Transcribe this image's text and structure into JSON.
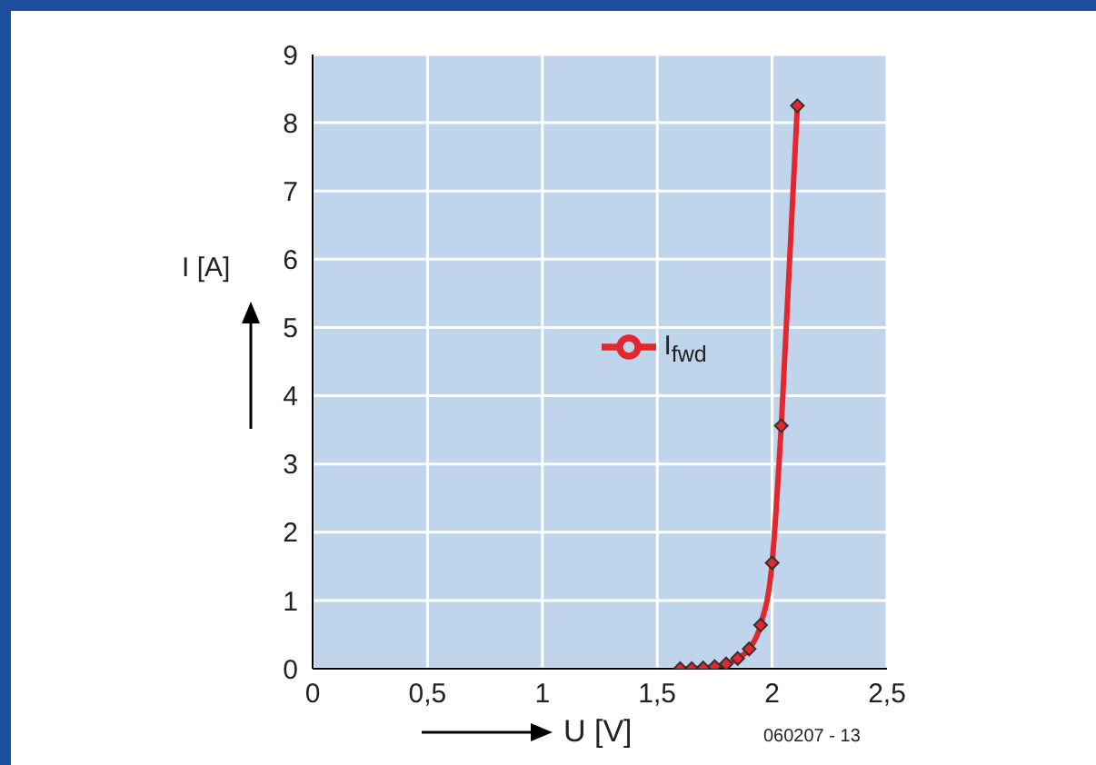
{
  "chart_data": {
    "type": "line",
    "xlabel": "U [V]",
    "ylabel": "I [A]",
    "x": [
      1.6,
      1.65,
      1.7,
      1.75,
      1.8,
      1.85,
      1.9,
      1.95,
      2.0,
      2.04,
      2.11
    ],
    "series": [
      {
        "name": "I$_{fwd}$",
        "color": "#e0282e",
        "values": [
          0,
          0,
          0.01,
          0.03,
          0.07,
          0.15,
          0.29,
          0.64,
          1.55,
          3.56,
          8.25
        ]
      }
    ],
    "xlim": [
      0,
      2.5
    ],
    "xticks": [
      0,
      {
        "value": 0.5,
        "label": "0,5"
      },
      1,
      {
        "value": 1.5,
        "label": "1,5"
      },
      2,
      {
        "value": 2.5,
        "label": "2,5"
      }
    ],
    "ylim": [
      0,
      9
    ],
    "yticks": [
      0,
      1,
      2,
      3,
      4,
      5,
      6,
      7,
      8,
      9
    ],
    "grid": true,
    "legend": "center",
    "marker": "diamond",
    "line_style": "solid",
    "annotations": [
      "060207 - 13"
    ]
  }
}
